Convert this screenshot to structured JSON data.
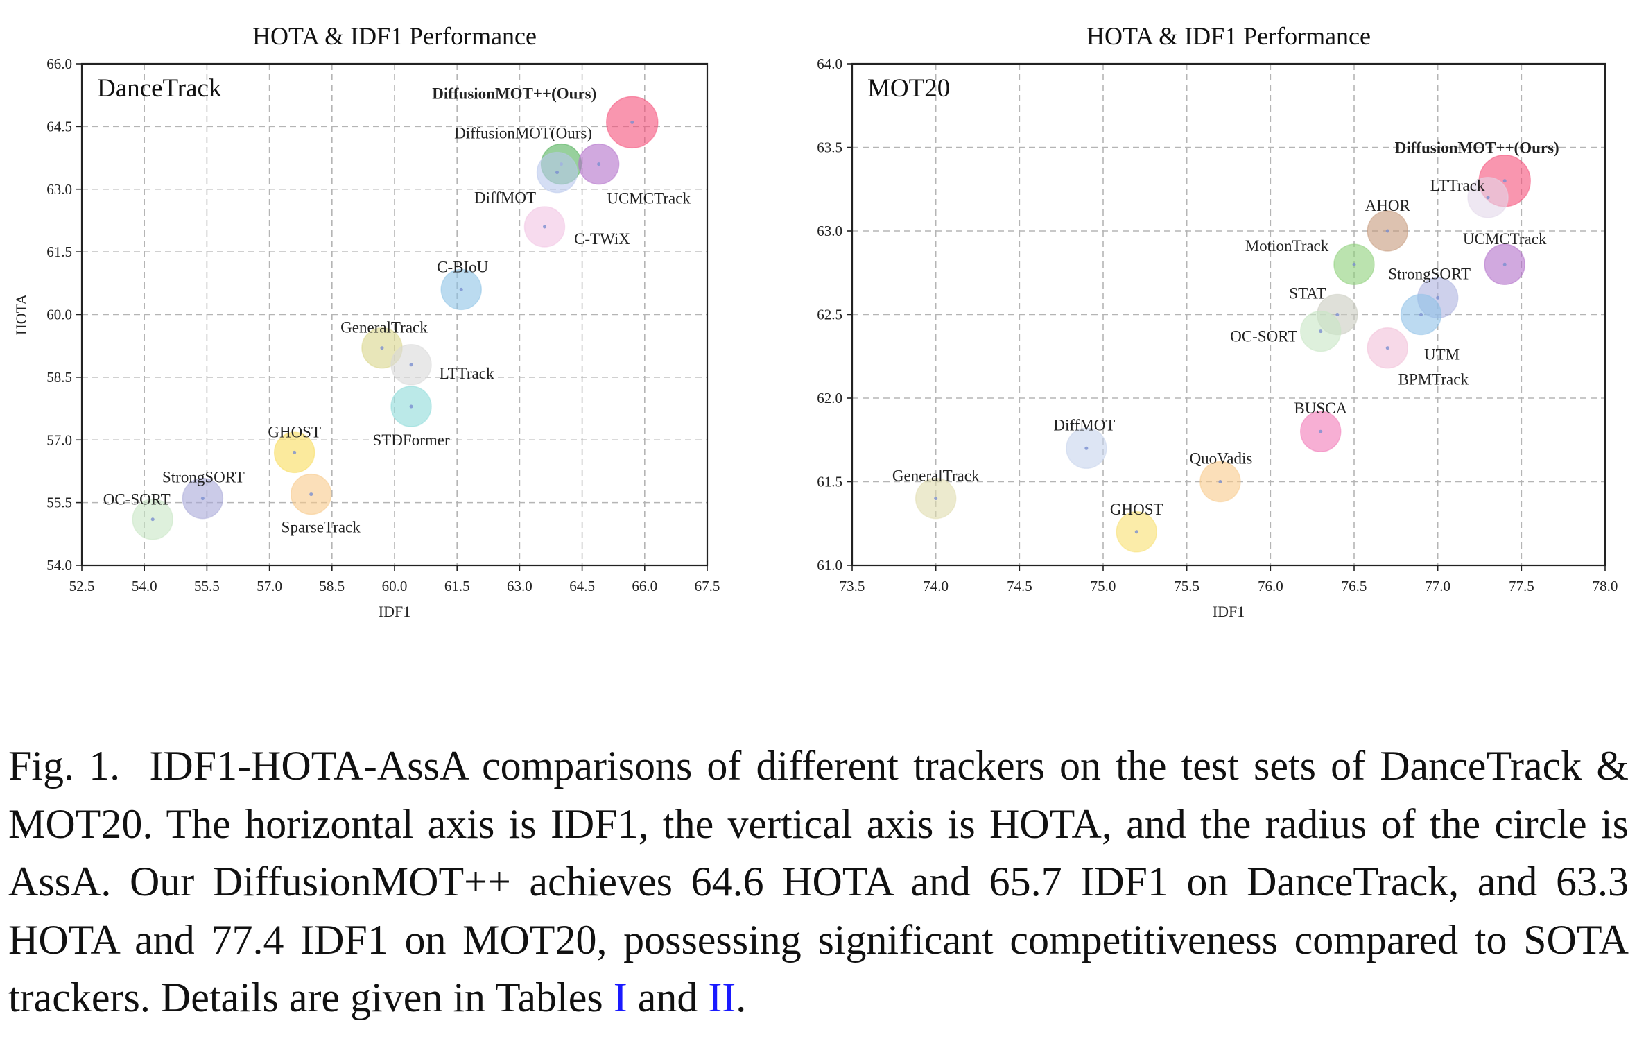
{
  "figure": {
    "caption_label": "Fig. 1.",
    "caption_body": "IDF1-HOTA-AssA comparisons of different trackers on the test sets of DanceTrack & MOT20. The horizontal axis is IDF1, the vertical axis is HOTA, and the radius of the circle is AssA. Our DiffusionMOT++ achieves 64.6 HOTA and 65.7 IDF1 on DanceTrack, and 63.3 HOTA and 77.4 IDF1 on MOT20, possessing significant competitiveness compared to SOTA trackers. Details are given in Tables",
    "ref_1": "I",
    "caption_and": "and",
    "ref_2": "II",
    "caption_end": "."
  },
  "chart_data": [
    {
      "type": "scatter",
      "title": "HOTA & IDF1 Performance",
      "panel_label": "DanceTrack",
      "xlabel": "IDF1",
      "ylabel": "HOTA",
      "xlim": [
        52.5,
        67.5
      ],
      "ylim": [
        54.0,
        66.0
      ],
      "xticks": [
        "52.5",
        "54.0",
        "55.5",
        "57.0",
        "58.5",
        "60.0",
        "61.5",
        "63.0",
        "64.5",
        "66.0",
        "67.5"
      ],
      "yticks": [
        "54.0",
        "55.5",
        "57.0",
        "58.5",
        "60.0",
        "61.5",
        "63.0",
        "64.5",
        "66.0"
      ],
      "grid": true,
      "size_encodes": "AssA",
      "points": [
        {
          "name": "DiffusionMOT++(Ours)",
          "x": 65.7,
          "y": 64.6,
          "color": "#f5507a",
          "bold": true,
          "big": true
        },
        {
          "name": "DiffusionMOT(Ours)",
          "x": 64.0,
          "y": 63.6,
          "color": "#52b05a"
        },
        {
          "name": "DiffMOT",
          "x": 63.9,
          "y": 63.4,
          "color": "#b9c8ec"
        },
        {
          "name": "UCMCTrack",
          "x": 64.9,
          "y": 63.6,
          "color": "#b270c9"
        },
        {
          "name": "C-TWiX",
          "x": 63.6,
          "y": 62.1,
          "color": "#f2c3e3"
        },
        {
          "name": "C-BIoU",
          "x": 61.6,
          "y": 60.6,
          "color": "#8ec3e6"
        },
        {
          "name": "GeneralTrack",
          "x": 59.7,
          "y": 59.2,
          "color": "#d9d68a"
        },
        {
          "name": "LTTrack",
          "x": 60.4,
          "y": 58.8,
          "color": "#d8d8d8"
        },
        {
          "name": "STDFormer",
          "x": 60.4,
          "y": 57.8,
          "color": "#8edbd9"
        },
        {
          "name": "GHOST",
          "x": 57.6,
          "y": 56.7,
          "color": "#f8dc5c"
        },
        {
          "name": "SparseTrack",
          "x": 58.0,
          "y": 55.7,
          "color": "#f8c98a"
        },
        {
          "name": "StrongSORT",
          "x": 55.4,
          "y": 55.6,
          "color": "#a9a9d8"
        },
        {
          "name": "OC-SORT",
          "x": 54.2,
          "y": 55.1,
          "color": "#c8e6c4"
        }
      ]
    },
    {
      "type": "scatter",
      "title": "HOTA & IDF1 Performance",
      "panel_label": "MOT20",
      "xlabel": "IDF1",
      "ylabel": "",
      "xlim": [
        73.5,
        78.0
      ],
      "ylim": [
        61.0,
        64.0
      ],
      "xticks": [
        "73.5",
        "74.0",
        "74.5",
        "75.0",
        "75.5",
        "76.0",
        "76.5",
        "77.0",
        "77.5",
        "78.0"
      ],
      "yticks": [
        "61.0",
        "61.5",
        "62.0",
        "62.5",
        "63.0",
        "63.5",
        "64.0"
      ],
      "grid": true,
      "size_encodes": "AssA",
      "points": [
        {
          "name": "DiffusionMOT++(Ours)",
          "x": 77.4,
          "y": 63.3,
          "color": "#f5507a",
          "bold": true,
          "big": true
        },
        {
          "name": "LTTrack",
          "x": 77.3,
          "y": 63.2,
          "color": "#e2d7e9"
        },
        {
          "name": "AHOR",
          "x": 76.7,
          "y": 63.0,
          "color": "#c69a7c"
        },
        {
          "name": "UCMCTrack",
          "x": 77.4,
          "y": 62.8,
          "color": "#b270c9"
        },
        {
          "name": "MotionTrack",
          "x": 76.5,
          "y": 62.8,
          "color": "#8ed07a"
        },
        {
          "name": "StrongSORT",
          "x": 77.0,
          "y": 62.6,
          "color": "#aeb3e0"
        },
        {
          "name": "STAT",
          "x": 76.4,
          "y": 62.5,
          "color": "#c9ccbf"
        },
        {
          "name": "UTM",
          "x": 76.9,
          "y": 62.5,
          "color": "#8fc2e8"
        },
        {
          "name": "OC-SORT",
          "x": 76.3,
          "y": 62.4,
          "color": "#c8e6c4"
        },
        {
          "name": "BPMTrack",
          "x": 76.7,
          "y": 62.3,
          "color": "#f2bfd8"
        },
        {
          "name": "BUSCA",
          "x": 76.3,
          "y": 61.8,
          "color": "#f27ab8"
        },
        {
          "name": "DiffMOT",
          "x": 74.9,
          "y": 61.7,
          "color": "#c7d4ec"
        },
        {
          "name": "QuoVadis",
          "x": 75.7,
          "y": 61.5,
          "color": "#f8c98a"
        },
        {
          "name": "GeneralTrack",
          "x": 74.0,
          "y": 61.4,
          "color": "#dfdcae"
        },
        {
          "name": "GHOST",
          "x": 75.2,
          "y": 61.2,
          "color": "#f8e070"
        }
      ]
    }
  ]
}
